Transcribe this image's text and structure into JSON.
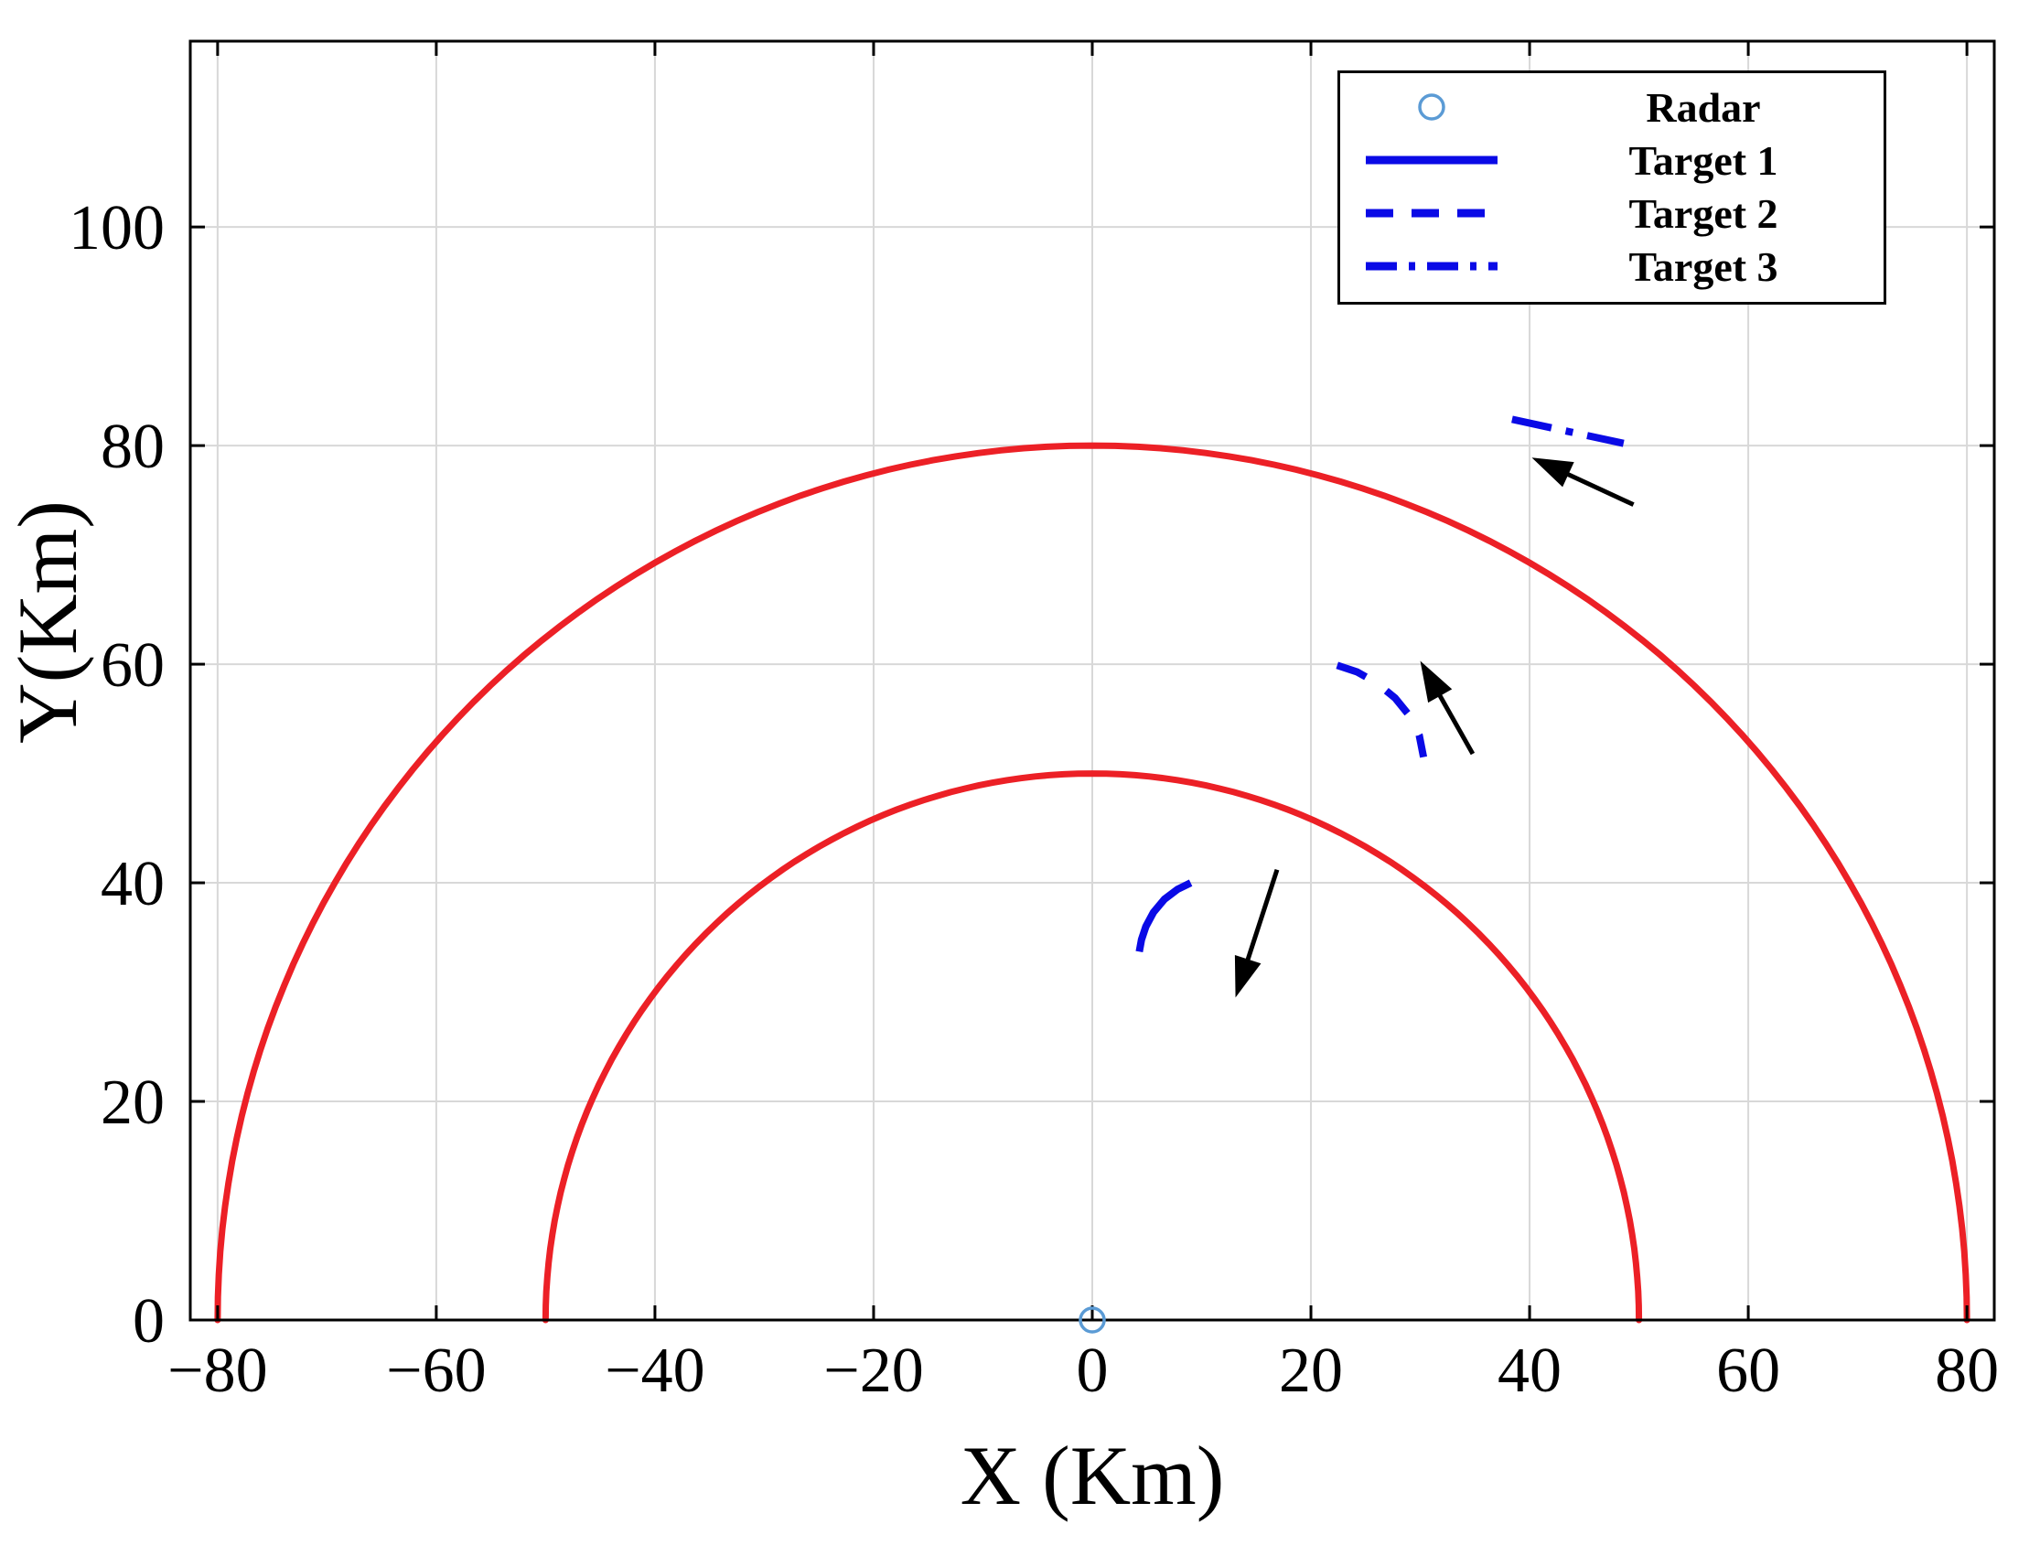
{
  "chart_data": {
    "type": "line",
    "title": "",
    "xlabel": "X (Km)",
    "ylabel": "Y(Km)",
    "xlim": [
      -82.5,
      82.5
    ],
    "ylim": [
      0,
      117
    ],
    "xticks": [
      -80,
      -60,
      -40,
      -20,
      0,
      20,
      40,
      60,
      80
    ],
    "yticks": [
      0,
      20,
      40,
      60,
      80,
      100
    ],
    "grid": true,
    "grid_color": "#d8d8d8",
    "radar": {
      "x": 0,
      "y": 0,
      "color": "#5b9bd5"
    },
    "range_rings": {
      "radii": [
        50,
        80
      ],
      "color": "#ec2026"
    },
    "series": [
      {
        "name": "Target 1",
        "style": "solid",
        "color": "#0a0ae6",
        "points": [
          [
            9.0,
            40.0
          ],
          [
            7.8,
            39.4
          ],
          [
            6.6,
            38.5
          ],
          [
            5.6,
            37.3
          ],
          [
            4.9,
            36.0
          ],
          [
            4.5,
            34.8
          ],
          [
            4.3,
            33.7
          ]
        ]
      },
      {
        "name": "Target 2",
        "style": "dashed",
        "color": "#0a0ae6",
        "points": [
          [
            22.4,
            59.9
          ],
          [
            24.2,
            59.3
          ],
          [
            26.0,
            58.3
          ],
          [
            27.7,
            56.9
          ],
          [
            29.0,
            55.3
          ],
          [
            29.9,
            53.5
          ],
          [
            30.3,
            51.5
          ]
        ]
      },
      {
        "name": "Target 3",
        "style": "dashdot",
        "color": "#0a0ae6",
        "points": [
          [
            38.4,
            82.4
          ],
          [
            43.5,
            81.3
          ],
          [
            48.6,
            80.2
          ]
        ]
      }
    ],
    "arrows": [
      {
        "from": [
          16.9,
          41.2
        ],
        "to": [
          13.1,
          29.5
        ]
      },
      {
        "from": [
          34.8,
          51.8
        ],
        "to": [
          30.0,
          60.3
        ]
      },
      {
        "from": [
          49.5,
          74.6
        ],
        "to": [
          40.2,
          78.9
        ]
      }
    ],
    "legend": {
      "position": "top-right",
      "entries": [
        {
          "label": "Radar",
          "marker": "circle"
        },
        {
          "label": "Target 1",
          "line": "solid"
        },
        {
          "label": "Target 2",
          "line": "dashed"
        },
        {
          "label": "Target 3",
          "line": "dashdot"
        }
      ]
    }
  }
}
